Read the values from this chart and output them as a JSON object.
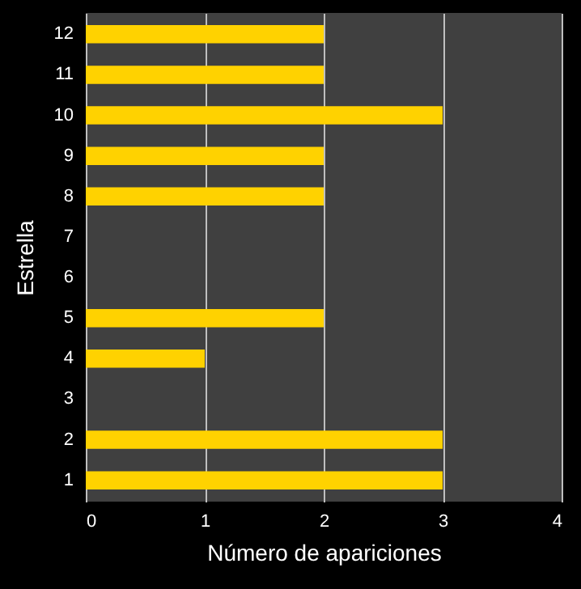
{
  "chart_data": {
    "type": "bar",
    "orientation": "horizontal",
    "xlabel": "Número de apariciones",
    "ylabel": "Estrella",
    "categories": [
      "12",
      "11",
      "10",
      "9",
      "8",
      "7",
      "6",
      "5",
      "4",
      "3",
      "2",
      "1"
    ],
    "values": [
      2,
      2,
      3,
      2,
      2,
      0,
      0,
      2,
      1,
      0,
      3,
      3
    ],
    "color": "#ffd200",
    "xlim": [
      0,
      4
    ],
    "xticks": [
      0,
      1,
      2,
      3,
      4
    ],
    "grid": "x"
  }
}
